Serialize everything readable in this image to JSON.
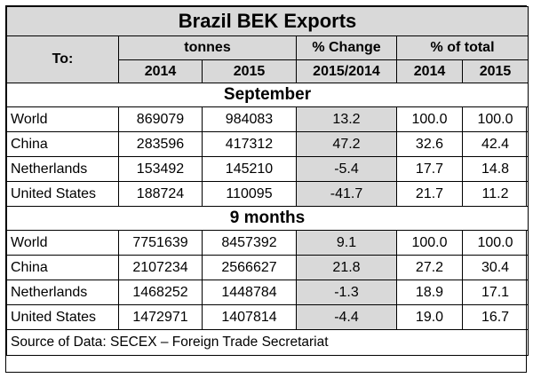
{
  "title": "Brazil BEK Exports",
  "headers": {
    "to": "To:",
    "tonnes": "tonnes",
    "pct_change": "% Change",
    "pct_total": "% of total",
    "y2014": "2014",
    "y2015": "2015",
    "period": "2015/2014",
    "p2014": "2014",
    "p2015": "2015"
  },
  "sections": [
    {
      "name": "September",
      "rows": [
        {
          "dest": "World",
          "t2014": "869079",
          "t2015": "984083",
          "change": "13.2",
          "s2014": "100.0",
          "s2015": "100.0"
        },
        {
          "dest": "China",
          "t2014": "283596",
          "t2015": "417312",
          "change": "47.2",
          "s2014": "32.6",
          "s2015": "42.4"
        },
        {
          "dest": "Netherlands",
          "t2014": "153492",
          "t2015": "145210",
          "change": "-5.4",
          "s2014": "17.7",
          "s2015": "14.8"
        },
        {
          "dest": "United States",
          "t2014": "188724",
          "t2015": "110095",
          "change": "-41.7",
          "s2014": "21.7",
          "s2015": "11.2"
        }
      ]
    },
    {
      "name": "9 months",
      "rows": [
        {
          "dest": "World",
          "t2014": "7751639",
          "t2015": "8457392",
          "change": "9.1",
          "s2014": "100.0",
          "s2015": "100.0"
        },
        {
          "dest": "China",
          "t2014": "2107234",
          "t2015": "2566627",
          "change": "21.8",
          "s2014": "27.2",
          "s2015": "30.4"
        },
        {
          "dest": "Netherlands",
          "t2014": "1468252",
          "t2015": "1448784",
          "change": "-1.3",
          "s2014": "18.9",
          "s2015": "17.1"
        },
        {
          "dest": "United States",
          "t2014": "1472971",
          "t2015": "1407814",
          "change": "-4.4",
          "s2014": "19.0",
          "s2015": "16.7"
        }
      ]
    }
  ],
  "source": "Source of Data: SECEX – Foreign Trade Secretariat"
}
